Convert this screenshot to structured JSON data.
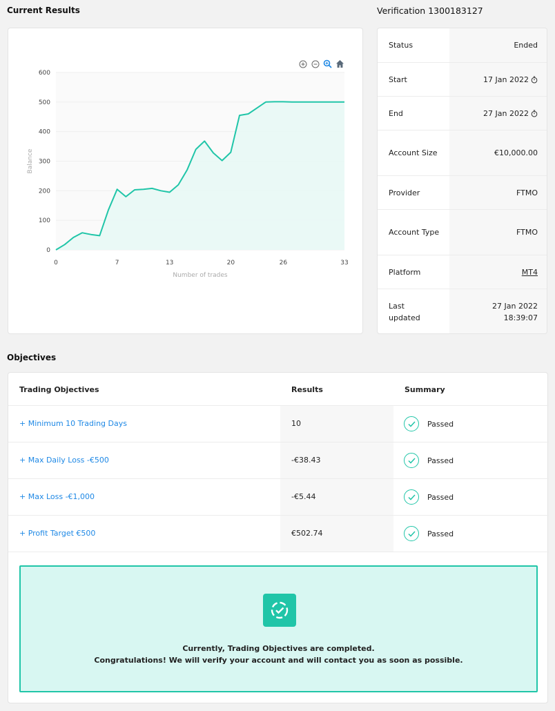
{
  "sections": {
    "current_results": "Current Results",
    "verification": "Verification 1300183127",
    "objectives": "Objectives"
  },
  "chart_toolbar": [
    "zoom-in-icon",
    "zoom-out-icon",
    "zoom-select-icon",
    "home-icon"
  ],
  "chart_data": {
    "type": "area",
    "xlabel": "Number of trades",
    "ylabel": "Balance",
    "xlim": [
      0,
      33
    ],
    "ylim": [
      0,
      600
    ],
    "x_ticks": [
      0,
      7,
      13,
      20,
      26,
      33
    ],
    "y_ticks": [
      0,
      100,
      200,
      300,
      400,
      500,
      600
    ],
    "colors": {
      "line": "#20c5a8",
      "fill": "#e8f8f5"
    },
    "x": [
      0,
      1,
      2,
      3,
      4,
      5,
      6,
      7,
      8,
      9,
      10,
      11,
      12,
      13,
      14,
      15,
      16,
      17,
      18,
      19,
      20,
      21,
      22,
      23,
      24,
      25,
      26,
      27,
      28,
      29,
      30,
      31,
      32,
      33
    ],
    "values": [
      0,
      18,
      42,
      58,
      52,
      48,
      135,
      205,
      180,
      203,
      205,
      208,
      200,
      195,
      220,
      270,
      340,
      368,
      328,
      302,
      330,
      455,
      460,
      480,
      500,
      501,
      501,
      500,
      500,
      500,
      500,
      500,
      500,
      500
    ]
  },
  "verification": {
    "rows": [
      {
        "label": "Status",
        "value": "Ended"
      },
      {
        "label": "Start",
        "value": "17 Jan 2022"
      },
      {
        "label": "End",
        "value": "27 Jan 2022"
      },
      {
        "label": "Account Size",
        "value": "€10,000.00"
      },
      {
        "label": "Provider",
        "value": "FTMO"
      },
      {
        "label": "Account Type",
        "value": "FTMO"
      },
      {
        "label": "Platform",
        "value": "MT4"
      },
      {
        "label": "Last updated",
        "value": "27 Jan 2022 18:39:07"
      }
    ]
  },
  "objectives": {
    "headers": {
      "name": "Trading Objectives",
      "results": "Results",
      "summary": "Summary"
    },
    "rows": [
      {
        "name": "+ Minimum 10 Trading Days",
        "result": "10",
        "summary": "Passed"
      },
      {
        "name": "+ Max Daily Loss -€500",
        "result": "-€38.43",
        "summary": "Passed"
      },
      {
        "name": "+ Max Loss -€1,000",
        "result": "-€5.44",
        "summary": "Passed"
      },
      {
        "name": "+ Profit Target €500",
        "result": "€502.74",
        "summary": "Passed"
      }
    ],
    "completion": {
      "line1": "Currently, Trading Objectives are completed.",
      "line2": "Congratulations! We will verify your account and will contact you as soon as possible."
    }
  }
}
